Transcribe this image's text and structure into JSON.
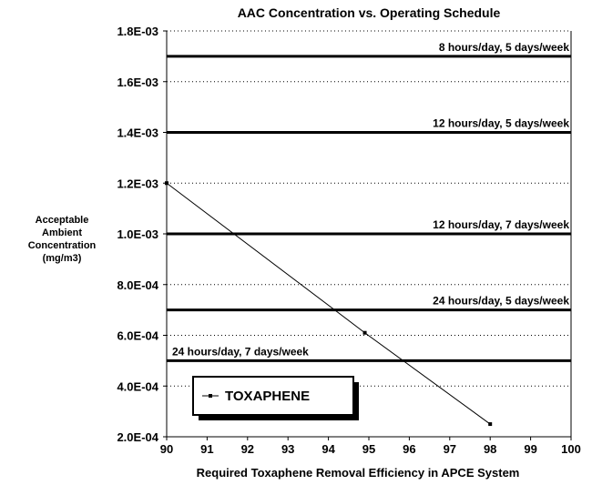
{
  "chart_data": {
    "type": "line",
    "title": "AAC Concentration vs. Operating Schedule",
    "xlabel": "Required Toxaphene Removal Efficiency in APCE System",
    "ylabel": [
      "Acceptable",
      "Ambient",
      "Concentration",
      "(mg/m3)"
    ],
    "xlim": [
      90,
      100
    ],
    "ylim": [
      0.0002,
      0.0018
    ],
    "x_ticks": [
      90,
      91,
      92,
      93,
      94,
      95,
      96,
      97,
      98,
      99,
      100
    ],
    "x_tick_labels": [
      "90",
      "91",
      "92",
      "93",
      "94",
      "95",
      "96",
      "97",
      "98",
      "99",
      "100"
    ],
    "y_ticks": [
      0.0002,
      0.0004,
      0.0006,
      0.0008,
      0.001,
      0.0012,
      0.0014,
      0.0016,
      0.0018
    ],
    "y_tick_labels": [
      "2.0E-04",
      "4.0E-04",
      "6.0E-04",
      "8.0E-04",
      "1.0E-03",
      "1.2E-03",
      "1.4E-03",
      "1.6E-03",
      "1.8E-03"
    ],
    "grid": "dotted horizontal",
    "legend_position": "bottom-left",
    "series": [
      {
        "name": "TOXAPHENE",
        "x": [
          90,
          94.9,
          98
        ],
        "y": [
          0.0012,
          0.00061,
          0.00025
        ]
      }
    ],
    "reference_lines": [
      {
        "y": 0.0017,
        "label": "8 hours/day, 5 days/week"
      },
      {
        "y": 0.0014,
        "label": "12 hours/day, 5 days/week"
      },
      {
        "y": 0.001,
        "label": "12 hours/day, 7 days/week"
      },
      {
        "y": 0.0007,
        "label": "24 hours/day, 5 days/week"
      },
      {
        "y": 0.0005,
        "label": "24 hours/day, 7 days/week"
      }
    ]
  },
  "colors": {
    "ink": "#000000",
    "background": "#ffffff"
  }
}
